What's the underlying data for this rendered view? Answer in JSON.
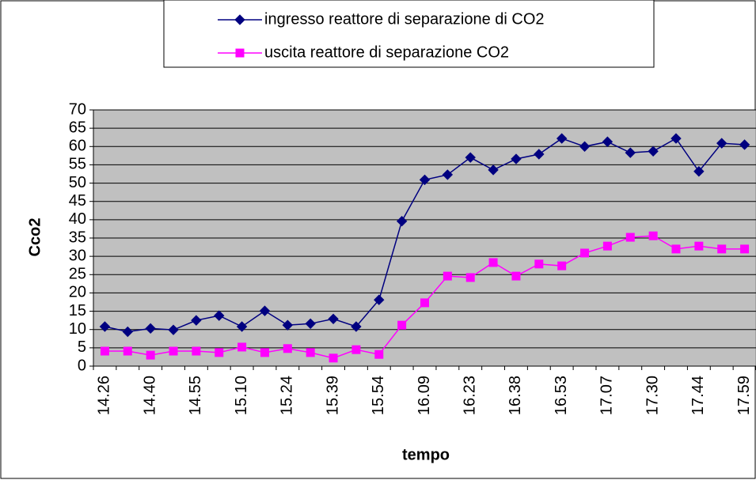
{
  "chart_data": {
    "type": "line",
    "y_label": "Cco2",
    "x_label": "tempo",
    "categories": [
      "14.26",
      null,
      "14.40",
      null,
      "14.55",
      null,
      "15.10",
      null,
      "15.24",
      null,
      "15.39",
      null,
      "15.54",
      null,
      "16.09",
      null,
      "16.23",
      null,
      "16.38",
      null,
      "16.53",
      null,
      "17.07",
      null,
      "17.30",
      null,
      "17.44",
      null,
      "17.59"
    ],
    "series": [
      {
        "name": "ingresso reattore di separazione di CO2",
        "color": "#000080",
        "marker": "diamond",
        "values": [
          10.8,
          9.4,
          10.3,
          9.9,
          12.5,
          13.8,
          10.8,
          15.1,
          11.2,
          11.6,
          12.9,
          10.8,
          18.1,
          39.6,
          50.9,
          52.3,
          57.0,
          53.6,
          56.6,
          57.9,
          62.2,
          60.0,
          61.3,
          58.3,
          58.7,
          62.2,
          53.2,
          60.9,
          60.5
        ]
      },
      {
        "name": "uscita reattore di separazione CO2",
        "color": "#ff00ff",
        "marker": "square",
        "values": [
          4.1,
          4.1,
          3.0,
          4.1,
          4.1,
          3.7,
          5.2,
          3.7,
          4.8,
          3.7,
          2.2,
          4.5,
          3.2,
          11.2,
          17.3,
          24.6,
          24.2,
          28.3,
          24.6,
          27.9,
          27.4,
          30.9,
          32.8,
          35.2,
          35.6,
          32.0,
          32.8,
          32.0,
          32.0
        ]
      }
    ],
    "ylim": [
      0,
      70
    ],
    "yticks": [
      0,
      5,
      10,
      15,
      20,
      25,
      30,
      35,
      40,
      45,
      50,
      55,
      60,
      65,
      70
    ],
    "grid": true,
    "legend": "top",
    "plot_background": "#c0c0c0"
  }
}
